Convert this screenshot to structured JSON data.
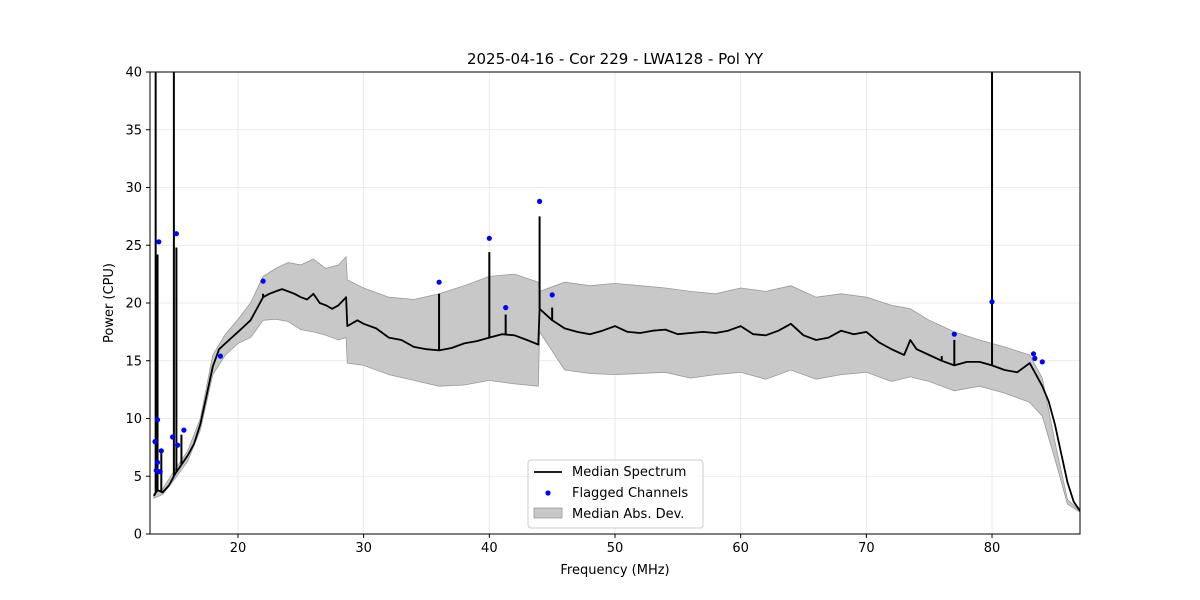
{
  "chart_data": {
    "type": "line",
    "title": "2025-04-16 - Cor 229 - LWA128 - Pol YY",
    "xlabel": "Frequency (MHz)",
    "ylabel": "Power (CPU)",
    "xlim": [
      13,
      87
    ],
    "ylim": [
      0,
      40
    ],
    "xticks": [
      20,
      30,
      40,
      50,
      60,
      70,
      80
    ],
    "yticks": [
      0,
      5,
      10,
      15,
      20,
      25,
      30,
      35,
      40
    ],
    "grid": true,
    "legend_position": "bottom-center",
    "series": [
      {
        "name": "Median Spectrum",
        "color": "#000000",
        "x": [
          13.3,
          13.6,
          14.0,
          14.5,
          15.0,
          15.5,
          16.0,
          16.5,
          17.0,
          17.5,
          18.0,
          18.5,
          19.0,
          19.5,
          20.0,
          20.5,
          21.0,
          21.5,
          22.0,
          22.5,
          23.0,
          23.5,
          24.0,
          24.5,
          25.0,
          25.5,
          26.0,
          26.5,
          27.0,
          27.5,
          28.0,
          28.6,
          28.7,
          29.5,
          30.0,
          31.0,
          32.0,
          33.0,
          34.0,
          35.0,
          36.0,
          37.0,
          38.0,
          39.0,
          40.0,
          41.0,
          42.0,
          43.0,
          43.9,
          44.0,
          45.0,
          46.0,
          47.0,
          48.0,
          49.0,
          50.0,
          51.0,
          52.0,
          53.0,
          54.0,
          55.0,
          56.0,
          57.0,
          58.0,
          59.0,
          60.0,
          61.0,
          62.0,
          63.0,
          64.0,
          65.0,
          66.0,
          67.0,
          68.0,
          69.0,
          70.0,
          71.0,
          72.0,
          73.0,
          73.5,
          74.0,
          75.0,
          76.0,
          77.0,
          78.0,
          79.0,
          80.0,
          81.0,
          82.0,
          83.0,
          83.5,
          84.0,
          84.5,
          85.0,
          85.5,
          86.0,
          86.5,
          87.0
        ],
        "y": [
          3.3,
          3.8,
          3.6,
          4.2,
          5.2,
          6.0,
          6.8,
          7.8,
          9.5,
          12.0,
          14.5,
          16.0,
          16.5,
          17.0,
          17.5,
          18.0,
          18.5,
          19.5,
          20.5,
          20.8,
          21.0,
          21.2,
          21.0,
          20.8,
          20.5,
          20.3,
          20.8,
          20.0,
          19.8,
          19.5,
          19.8,
          20.5,
          18.0,
          18.5,
          18.2,
          17.8,
          17.0,
          16.8,
          16.2,
          16.0,
          15.9,
          16.1,
          16.5,
          16.7,
          17.0,
          17.3,
          17.2,
          16.8,
          16.4,
          19.5,
          18.5,
          17.8,
          17.5,
          17.3,
          17.6,
          18.0,
          17.5,
          17.4,
          17.6,
          17.7,
          17.3,
          17.4,
          17.5,
          17.4,
          17.6,
          18.0,
          17.3,
          17.2,
          17.6,
          18.2,
          17.2,
          16.8,
          17.0,
          17.6,
          17.3,
          17.5,
          16.6,
          16.0,
          15.5,
          16.8,
          16.0,
          15.5,
          15.0,
          14.6,
          14.9,
          14.9,
          14.6,
          14.2,
          14.0,
          14.8,
          13.8,
          12.8,
          11.5,
          9.5,
          7.0,
          4.5,
          2.8,
          2.0
        ],
        "spikes": [
          {
            "x": 13.45,
            "y": 40
          },
          {
            "x": 13.6,
            "y": 24.2
          },
          {
            "x": 13.9,
            "y": 7.0
          },
          {
            "x": 14.9,
            "y": 40
          },
          {
            "x": 15.1,
            "y": 24.8
          },
          {
            "x": 15.5,
            "y": 8.6
          },
          {
            "x": 22.0,
            "y": 20.8
          },
          {
            "x": 36.0,
            "y": 20.8
          },
          {
            "x": 40.0,
            "y": 24.4
          },
          {
            "x": 41.3,
            "y": 19.0
          },
          {
            "x": 44.0,
            "y": 27.5
          },
          {
            "x": 45.0,
            "y": 19.6
          },
          {
            "x": 76.0,
            "y": 15.4
          },
          {
            "x": 77.0,
            "y": 16.8
          },
          {
            "x": 80.0,
            "y": 40
          }
        ]
      },
      {
        "name": "Flagged Channels",
        "color": "#0000ff",
        "type": "scatter",
        "x": [
          13.4,
          13.5,
          13.6,
          13.6,
          13.7,
          13.8,
          13.9,
          14.8,
          15.1,
          15.2,
          15.7,
          18.6,
          22.0,
          36.0,
          40.0,
          41.3,
          44.0,
          45.0,
          77.0,
          80.0,
          83.3,
          83.4,
          84.0
        ],
        "y": [
          8.0,
          5.5,
          6.2,
          9.9,
          25.3,
          5.4,
          7.2,
          8.4,
          26.0,
          7.7,
          9.0,
          15.4,
          21.9,
          21.8,
          25.6,
          19.6,
          28.8,
          20.7,
          17.3,
          20.1,
          15.6,
          15.2,
          14.9
        ]
      },
      {
        "name": "Median Abs. Dev.",
        "color": "#c8c8c8",
        "type": "area",
        "x": [
          13.3,
          14.0,
          15.0,
          16.0,
          17.0,
          18.0,
          19.0,
          20.0,
          21.0,
          22.0,
          23.0,
          24.0,
          25.0,
          26.0,
          27.0,
          28.0,
          28.6,
          28.7,
          30.0,
          32.0,
          34.0,
          36.0,
          38.0,
          40.0,
          42.0,
          43.9,
          44.0,
          46.0,
          48.0,
          50.0,
          52.0,
          54.0,
          56.0,
          58.0,
          60.0,
          62.0,
          64.0,
          66.0,
          68.0,
          70.0,
          72.0,
          73.5,
          75.0,
          77.0,
          79.0,
          81.0,
          83.0,
          84.0,
          85.0,
          86.0,
          87.0
        ],
        "upper": [
          3.5,
          3.9,
          5.6,
          7.2,
          10.0,
          15.5,
          17.3,
          18.6,
          20.0,
          22.3,
          23.0,
          23.5,
          23.3,
          23.8,
          23.0,
          23.3,
          24.0,
          22.0,
          21.3,
          20.5,
          20.3,
          20.8,
          21.5,
          22.3,
          22.5,
          21.8,
          21.0,
          21.8,
          21.5,
          21.7,
          21.5,
          21.3,
          21.0,
          20.8,
          21.3,
          21.0,
          21.5,
          20.5,
          20.8,
          20.5,
          19.8,
          19.5,
          18.5,
          17.5,
          16.8,
          16.2,
          15.5,
          13.5,
          8.0,
          3.0,
          2.0
        ],
        "lower": [
          3.1,
          3.4,
          4.8,
          6.3,
          9.0,
          13.8,
          15.5,
          16.5,
          17.0,
          18.5,
          18.6,
          18.4,
          17.7,
          17.5,
          17.2,
          16.8,
          17.0,
          14.8,
          14.6,
          13.8,
          13.3,
          12.8,
          12.9,
          13.3,
          13.0,
          12.8,
          17.5,
          14.2,
          13.9,
          13.8,
          13.9,
          14.0,
          13.5,
          13.8,
          14.0,
          13.4,
          14.2,
          13.4,
          13.8,
          14.0,
          13.2,
          13.6,
          13.2,
          12.4,
          12.8,
          12.2,
          11.4,
          10.2,
          6.5,
          2.6,
          1.9
        ]
      }
    ]
  }
}
